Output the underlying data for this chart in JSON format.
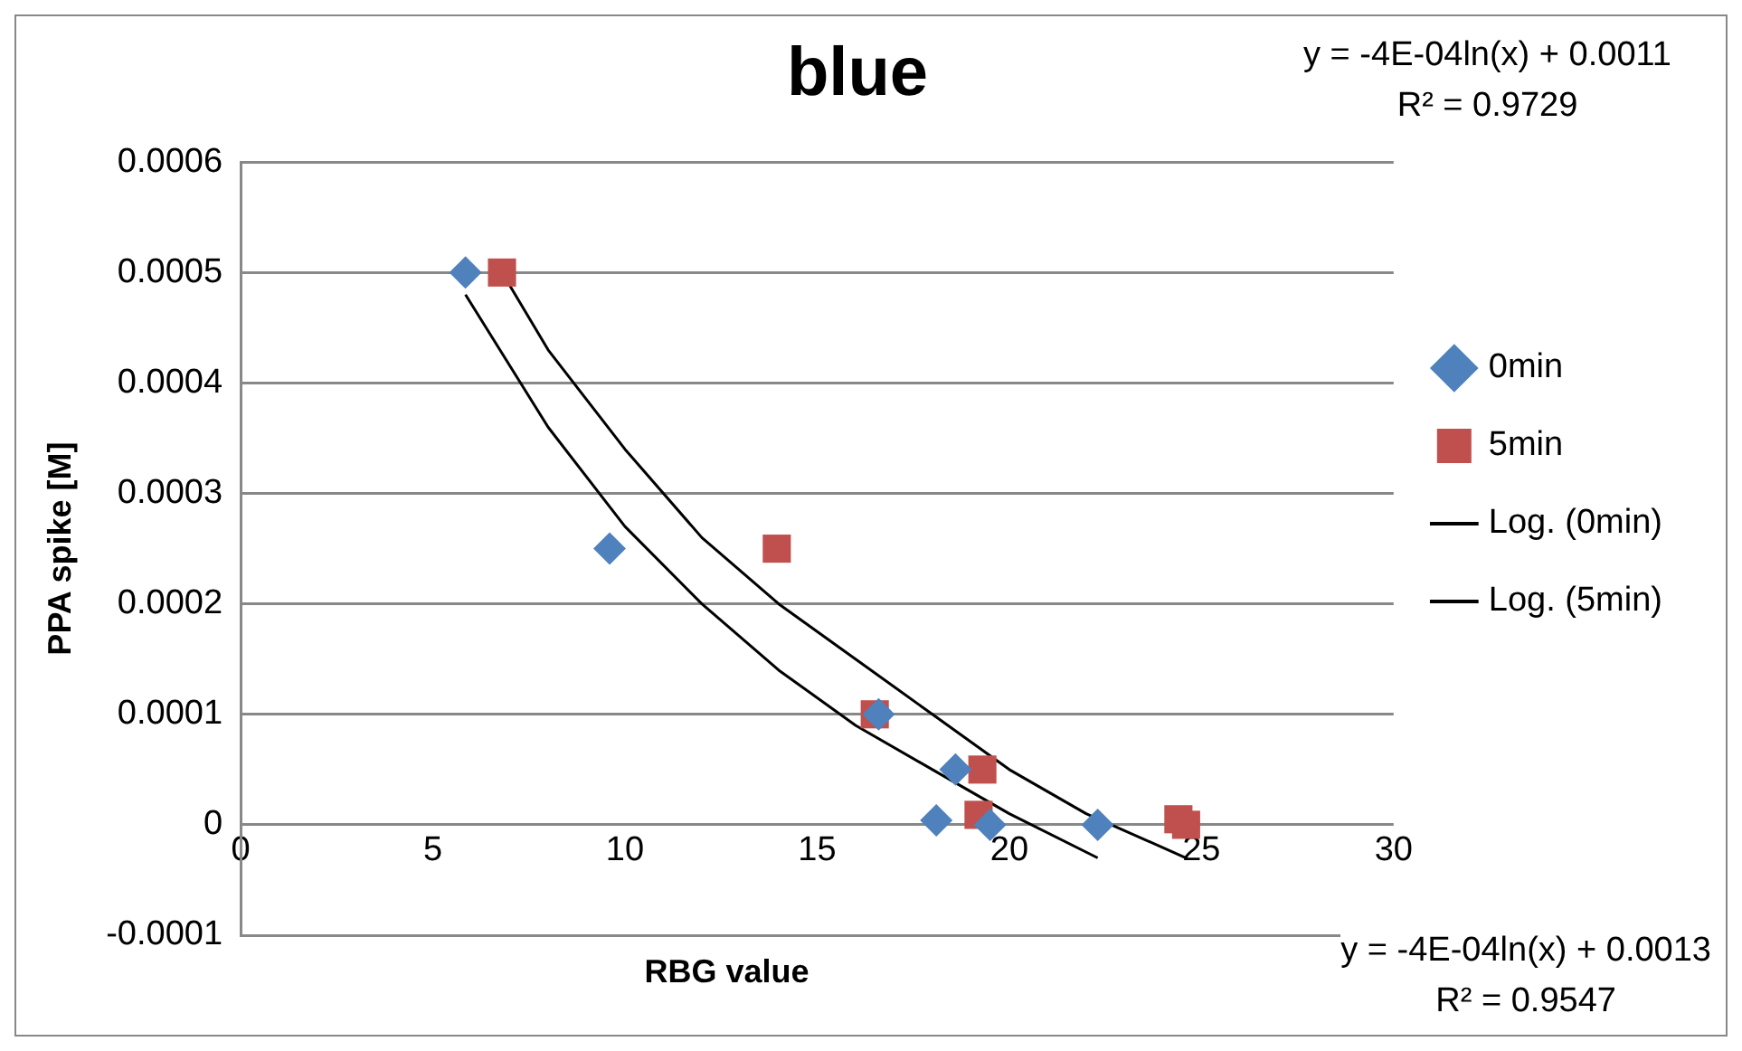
{
  "chart_data": {
    "type": "scatter",
    "title": "blue",
    "xlabel": "RBG value",
    "ylabel": "PPA spike [M]",
    "xlim": [
      0,
      30
    ],
    "xticks": [
      0,
      5,
      10,
      15,
      20,
      25,
      30
    ],
    "ylim": [
      -0.0001,
      0.0006
    ],
    "yticks": [
      -0.0001,
      0,
      0.0001,
      0.0002,
      0.0003,
      0.0004,
      0.0005,
      0.0006
    ],
    "grid": "y",
    "legend": "right",
    "annotations": [
      "y = -4E-04ln(x) + 0.0011\nR² = 0.9729",
      "y = -4E-04ln(x) + 0.0013\nR² = 0.9547"
    ],
    "series": [
      {
        "name": "0min",
        "type": "scatter",
        "marker": "diamond",
        "color": "#4f81bd",
        "x": [
          5.85,
          9.6,
          16.6,
          18.6,
          18.1,
          19.5,
          22.3
        ],
        "values": [
          0.0005,
          0.00025,
          0.0001,
          5e-05,
          4e-06,
          0,
          0
        ]
      },
      {
        "name": "5min",
        "type": "scatter",
        "marker": "square",
        "color": "#c0504d",
        "x": [
          6.8,
          13.95,
          16.5,
          19.3,
          19.2,
          24.4,
          24.6
        ],
        "values": [
          0.0005,
          0.00025,
          0.0001,
          5e-05,
          9e-06,
          5e-06,
          0
        ]
      },
      {
        "name": "Log. (0min)",
        "type": "line",
        "marker": "none",
        "color": "#000000",
        "x": [
          5.85,
          8,
          10,
          12,
          14,
          16,
          18,
          20,
          22.3
        ],
        "values": [
          0.00048,
          0.00036,
          0.00027,
          0.0002,
          0.00014,
          9e-05,
          5e-05,
          1e-05,
          -3e-05
        ]
      },
      {
        "name": "Log. (5min)",
        "type": "line",
        "marker": "none",
        "color": "#000000",
        "x": [
          6.8,
          8,
          10,
          12,
          14,
          16,
          18,
          20,
          22,
          24.6
        ],
        "values": [
          0.0005,
          0.00043,
          0.00034,
          0.00026,
          0.0002,
          0.00015,
          0.0001,
          5e-05,
          1e-05,
          -3e-05
        ]
      }
    ]
  }
}
